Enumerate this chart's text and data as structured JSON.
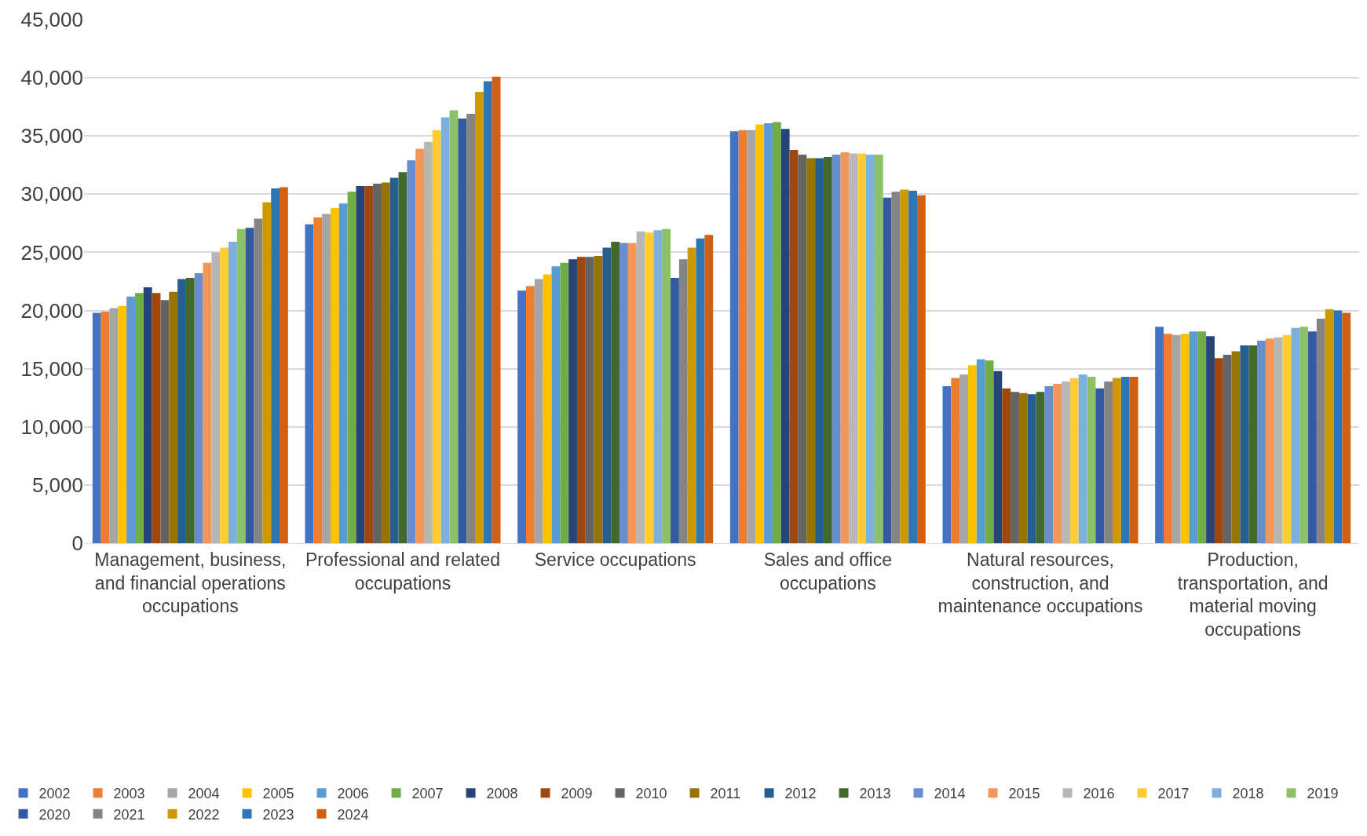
{
  "chart_data": {
    "type": "bar",
    "categories": [
      "Management, business, and financial operations occupations",
      "Professional and related occupations",
      "Service occupations",
      "Sales and office occupations",
      "Natural resources, construction, and maintenance occupations",
      "Production, transportation, and material moving occupations"
    ],
    "series": [
      {
        "name": "2002",
        "color": "#4472c4",
        "values": [
          19800,
          27400,
          21700,
          35400,
          13500,
          18600
        ]
      },
      {
        "name": "2003",
        "color": "#ed7d31",
        "values": [
          19900,
          28000,
          22100,
          35500,
          14200,
          18000
        ]
      },
      {
        "name": "2004",
        "color": "#a5a5a5",
        "values": [
          20200,
          28300,
          22700,
          35500,
          14500,
          17900
        ]
      },
      {
        "name": "2005",
        "color": "#ffc000",
        "values": [
          20400,
          28800,
          23100,
          36000,
          15300,
          18000
        ]
      },
      {
        "name": "2006",
        "color": "#5b9bd5",
        "values": [
          21200,
          29200,
          23800,
          36100,
          15800,
          18200
        ]
      },
      {
        "name": "2007",
        "color": "#70ad47",
        "values": [
          21500,
          30200,
          24100,
          36200,
          15700,
          18200
        ]
      },
      {
        "name": "2008",
        "color": "#264478",
        "values": [
          22000,
          30700,
          24400,
          35600,
          14800,
          17800
        ]
      },
      {
        "name": "2009",
        "color": "#9e480e",
        "values": [
          21500,
          30700,
          24600,
          33800,
          13300,
          15900
        ]
      },
      {
        "name": "2010",
        "color": "#636363",
        "values": [
          20900,
          30900,
          24600,
          33400,
          13000,
          16200
        ]
      },
      {
        "name": "2011",
        "color": "#997300",
        "values": [
          21600,
          31000,
          24700,
          33100,
          12900,
          16500
        ]
      },
      {
        "name": "2012",
        "color": "#255e91",
        "values": [
          22700,
          31400,
          25400,
          33100,
          12800,
          17000
        ]
      },
      {
        "name": "2013",
        "color": "#43682b",
        "values": [
          22800,
          31900,
          25900,
          33200,
          13000,
          17000
        ]
      },
      {
        "name": "2014",
        "color": "#698ed0",
        "values": [
          23200,
          32900,
          25800,
          33400,
          13500,
          17400
        ]
      },
      {
        "name": "2015",
        "color": "#f1975a",
        "values": [
          24100,
          33900,
          25800,
          33600,
          13700,
          17600
        ]
      },
      {
        "name": "2016",
        "color": "#b7b7b7",
        "values": [
          25000,
          34500,
          26800,
          33500,
          13900,
          17700
        ]
      },
      {
        "name": "2017",
        "color": "#ffcd33",
        "values": [
          25400,
          35500,
          26700,
          33500,
          14200,
          17900
        ]
      },
      {
        "name": "2018",
        "color": "#7cafdd",
        "values": [
          25900,
          36600,
          26900,
          33400,
          14500,
          18500
        ]
      },
      {
        "name": "2019",
        "color": "#8cc168",
        "values": [
          27000,
          37200,
          27000,
          33400,
          14300,
          18600
        ]
      },
      {
        "name": "2020",
        "color": "#335aa1",
        "values": [
          27100,
          36500,
          22800,
          29700,
          13300,
          18200
        ]
      },
      {
        "name": "2021",
        "color": "#848484",
        "values": [
          27900,
          36900,
          24400,
          30200,
          13900,
          19300
        ]
      },
      {
        "name": "2022",
        "color": "#cc9a00",
        "values": [
          29300,
          38800,
          25400,
          30400,
          14200,
          20100
        ]
      },
      {
        "name": "2023",
        "color": "#2e75b6",
        "values": [
          30500,
          39700,
          26200,
          30300,
          14300,
          20000
        ]
      },
      {
        "name": "2024",
        "color": "#d26012",
        "values": [
          30600,
          40100,
          26500,
          29900,
          14300,
          19800
        ]
      }
    ],
    "ylim": [
      0,
      45000
    ],
    "yticks": [
      0,
      {
        "value": 5000,
        "label": "5,000"
      },
      {
        "value": 10000,
        "label": "10,000"
      },
      {
        "value": 15000,
        "label": "15,000"
      },
      {
        "value": 20000,
        "label": "20,000"
      },
      {
        "value": 25000,
        "label": "25,000"
      },
      {
        "value": 30000,
        "label": "30,000"
      },
      {
        "value": 35000,
        "label": "35,000"
      },
      {
        "value": 40000,
        "label": "40,000"
      },
      {
        "value": 45000,
        "label": "45,000"
      }
    ],
    "grid": "y",
    "legend": "bottom"
  }
}
